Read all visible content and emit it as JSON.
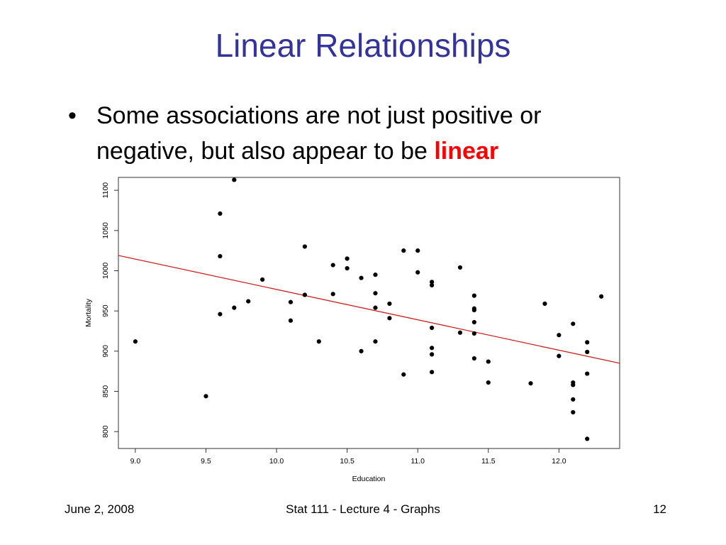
{
  "slide": {
    "title": "Linear Relationships",
    "bullet_text": "Some associations are not just positive or negative, but also appear to be ",
    "bullet_emphasis": "linear"
  },
  "footer": {
    "date": "June 2, 2008",
    "course": "Stat 111 - Lecture 4 - Graphs",
    "page": "12"
  },
  "chart_data": {
    "type": "scatter",
    "xlabel": "Education",
    "ylabel": "Mortality",
    "xlim": [
      8.88,
      12.43
    ],
    "ylim": [
      779,
      1116
    ],
    "x_ticks": [
      "9.0",
      "9.5",
      "10.0",
      "10.5",
      "11.0",
      "11.5",
      "12.0"
    ],
    "y_ticks": [
      "800",
      "850",
      "900",
      "950",
      "1000",
      "1050",
      "1100"
    ],
    "grid": false,
    "point_color": "#000000",
    "fit_line_color": "#cc2222",
    "fit_line": {
      "x": [
        8.88,
        12.43
      ],
      "y": [
        1019,
        885
      ]
    },
    "points": [
      {
        "x": 9.0,
        "y": 912
      },
      {
        "x": 9.5,
        "y": 844
      },
      {
        "x": 9.6,
        "y": 1071
      },
      {
        "x": 9.6,
        "y": 1018
      },
      {
        "x": 9.6,
        "y": 946
      },
      {
        "x": 9.7,
        "y": 1113
      },
      {
        "x": 9.7,
        "y": 954
      },
      {
        "x": 9.8,
        "y": 962
      },
      {
        "x": 9.9,
        "y": 989
      },
      {
        "x": 10.1,
        "y": 961
      },
      {
        "x": 10.1,
        "y": 938
      },
      {
        "x": 10.2,
        "y": 1030
      },
      {
        "x": 10.2,
        "y": 970
      },
      {
        "x": 10.3,
        "y": 912
      },
      {
        "x": 10.4,
        "y": 1007
      },
      {
        "x": 10.4,
        "y": 971
      },
      {
        "x": 10.5,
        "y": 1015
      },
      {
        "x": 10.5,
        "y": 1003
      },
      {
        "x": 10.6,
        "y": 991
      },
      {
        "x": 10.6,
        "y": 900
      },
      {
        "x": 10.7,
        "y": 995
      },
      {
        "x": 10.7,
        "y": 972
      },
      {
        "x": 10.7,
        "y": 954
      },
      {
        "x": 10.7,
        "y": 912
      },
      {
        "x": 10.8,
        "y": 959
      },
      {
        "x": 10.8,
        "y": 941
      },
      {
        "x": 10.9,
        "y": 1025
      },
      {
        "x": 10.9,
        "y": 871
      },
      {
        "x": 11.0,
        "y": 1025
      },
      {
        "x": 11.0,
        "y": 998
      },
      {
        "x": 11.1,
        "y": 986
      },
      {
        "x": 11.1,
        "y": 982
      },
      {
        "x": 11.1,
        "y": 929
      },
      {
        "x": 11.1,
        "y": 904
      },
      {
        "x": 11.1,
        "y": 896
      },
      {
        "x": 11.1,
        "y": 874
      },
      {
        "x": 11.3,
        "y": 1004
      },
      {
        "x": 11.3,
        "y": 923
      },
      {
        "x": 11.4,
        "y": 969
      },
      {
        "x": 11.4,
        "y": 953
      },
      {
        "x": 11.4,
        "y": 951
      },
      {
        "x": 11.4,
        "y": 936
      },
      {
        "x": 11.4,
        "y": 922
      },
      {
        "x": 11.4,
        "y": 891
      },
      {
        "x": 11.5,
        "y": 887
      },
      {
        "x": 11.5,
        "y": 861
      },
      {
        "x": 11.8,
        "y": 860
      },
      {
        "x": 11.9,
        "y": 959
      },
      {
        "x": 12.0,
        "y": 920
      },
      {
        "x": 12.0,
        "y": 894
      },
      {
        "x": 12.1,
        "y": 934
      },
      {
        "x": 12.1,
        "y": 861
      },
      {
        "x": 12.1,
        "y": 858
      },
      {
        "x": 12.1,
        "y": 840
      },
      {
        "x": 12.1,
        "y": 824
      },
      {
        "x": 12.2,
        "y": 911
      },
      {
        "x": 12.2,
        "y": 899
      },
      {
        "x": 12.2,
        "y": 872
      },
      {
        "x": 12.2,
        "y": 791
      },
      {
        "x": 12.3,
        "y": 968
      }
    ]
  }
}
